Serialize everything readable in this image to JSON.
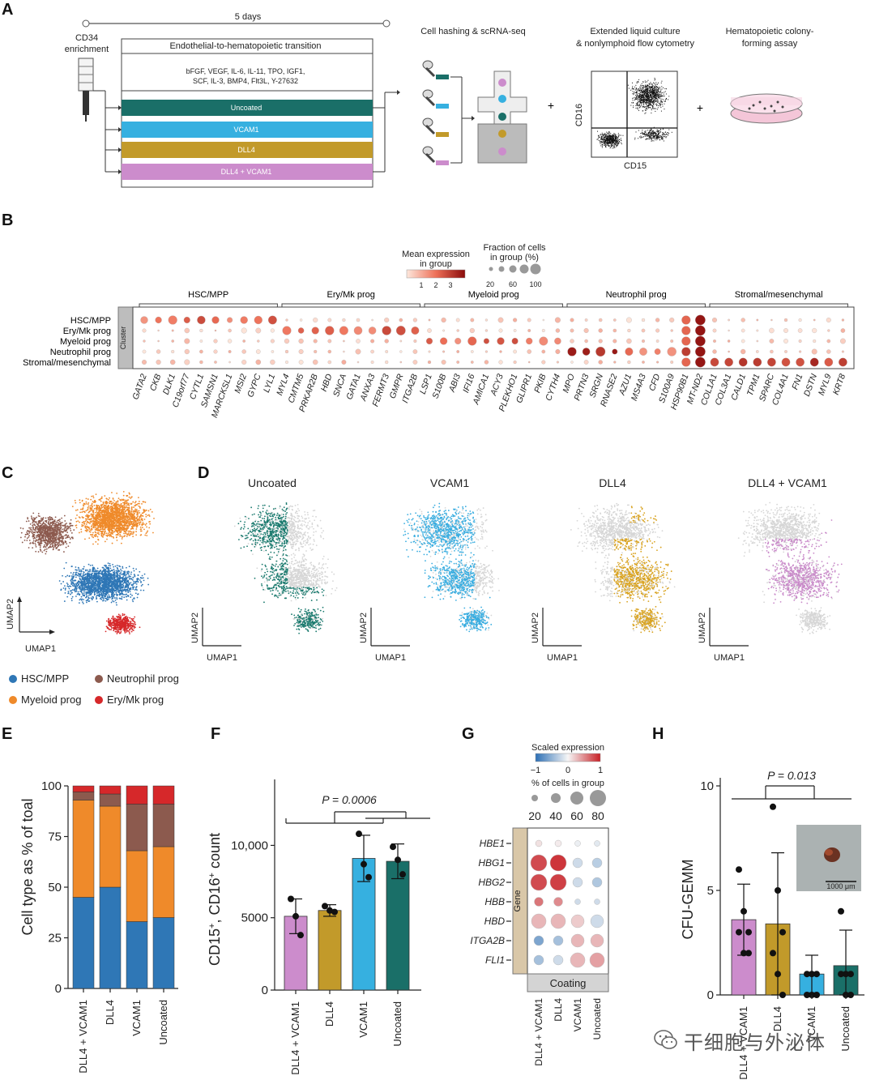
{
  "panels": {
    "a": "A",
    "b": "B",
    "c": "C",
    "d": "D",
    "e": "E",
    "f": "F",
    "g": "G",
    "h": "H"
  },
  "panel_a": {
    "days": "5 days",
    "cd34_line1": "CD34",
    "cd34_line2": "enrichment",
    "eht_title": "Endothelial-to-hematopoietic transition",
    "factors_line1": "bFGF, VEGF, IL-6, IL-11, TPO, IGF1,",
    "factors_line2": "SCF, IL-3, BMP4, Flt3L, Y-27632",
    "conditions": [
      {
        "label": "Uncoated",
        "color": "#1a6f68"
      },
      {
        "label": "VCAM1",
        "color": "#36b0e0"
      },
      {
        "label": "DLL4",
        "color": "#c29a2a"
      },
      {
        "label": "DLL4 + VCAM1",
        "color": "#cc8ccc"
      }
    ],
    "hashing_title": "Cell hashing & scRNA-seq",
    "flow_title_line1": "Extended liquid culture",
    "flow_title_line2": "& nonlymphoid flow cytometry",
    "flow_y": "CD16",
    "flow_x": "CD15",
    "colony_title_line1": "Hematopoietic colony-",
    "colony_title_line2": "forming assay",
    "plus": "+"
  },
  "panel_b": {
    "mean_expr_title_line1": "Mean expression",
    "mean_expr_title_line2": "in group",
    "mean_expr_ticks": [
      "1",
      "2",
      "3"
    ],
    "fraction_title_line1": "Fraction of cells",
    "fraction_title_line2": "in group (%)",
    "fraction_ticks": [
      "20",
      "60",
      "100"
    ],
    "cluster_label": "Cluster",
    "groups": [
      "HSC/MPP",
      "Ery/Mk prog",
      "Myeloid prog",
      "Neutrophil prog",
      "Stromal/mesenchymal"
    ],
    "rows": [
      "HSC/MPP",
      "Ery/Mk prog",
      "Myeloid prog",
      "Neutrophil prog",
      "Stromal/mesenchymal"
    ],
    "genes": [
      "GATA2",
      "CKB",
      "DLK1",
      "C19orf77",
      "CYTL1",
      "SAMSN1",
      "MARCKSL1",
      "MSI2",
      "GYPC",
      "LYL1",
      "MYL4",
      "CMTM5",
      "PRKAR2B",
      "HBD",
      "SNCA",
      "GATA1",
      "ANXA3",
      "FERMT3",
      "GMPR",
      "ITGA2B",
      "LSP1",
      "S100B",
      "ABI3",
      "IFI16",
      "AMICA1",
      "ACY3",
      "PLEKHO1",
      "GLIPR1",
      "PKIB",
      "CYTH4",
      "MPO",
      "PRTN3",
      "SRGN",
      "RNASE2",
      "AZU1",
      "MS4A3",
      "CFD",
      "S100A9",
      "HSP90B1",
      "MT-ND2",
      "COL1A1",
      "COL3A1",
      "CALD1",
      "TPM1",
      "SPARC",
      "COL4A1",
      "FN1",
      "DSTN",
      "MYL9",
      "KRT8"
    ]
  },
  "panel_c": {
    "umap_y": "UMAP2",
    "umap_x": "UMAP1",
    "legend": [
      {
        "label": "HSC/MPP",
        "color": "#2f77b6"
      },
      {
        "label": "Neutrophil prog",
        "color": "#8c5a4e"
      },
      {
        "label": "Myeloid prog",
        "color": "#ef8a2a"
      },
      {
        "label": "Ery/Mk prog",
        "color": "#d6282a"
      }
    ]
  },
  "panel_d": {
    "titles": [
      "Uncoated",
      "VCAM1",
      "DLL4",
      "DLL4 + VCAM1"
    ],
    "colors": [
      "#1a7a6e",
      "#39ade0",
      "#d9a320",
      "#c98ac9"
    ],
    "umap_y": "UMAP2",
    "umap_x": "UMAP1"
  },
  "panel_e": {
    "ylabel": "Cell type as % of toal",
    "yticks": [
      "0",
      "25",
      "50",
      "75",
      "100"
    ]
  },
  "panel_f": {
    "ylabel_main": "CD15",
    "ylabel_sup1": "+",
    "ylabel_mid": ", CD16",
    "ylabel_sup2": "+",
    "ylabel_end": " count",
    "pvalue": "P = 0.0006",
    "yticks": [
      "0",
      "5000",
      "10,000"
    ]
  },
  "panel_g": {
    "scaled_title": "Scaled expression",
    "scaled_ticks": [
      "−1",
      "0",
      "1"
    ],
    "pct_title": "% of cells in group",
    "pct_ticks": [
      "20",
      "40",
      "60",
      "80"
    ],
    "gene_label": "Gene",
    "coating_label": "Coating",
    "genes": [
      "HBE1",
      "HBG1",
      "HBG2",
      "HBB",
      "HBD",
      "ITGA2B",
      "FLI1"
    ]
  },
  "panel_h": {
    "ylabel": "CFU-GEMM",
    "pvalue": "P = 0.013",
    "yticks": [
      "0",
      "5",
      "10"
    ],
    "scale_bar": "1000 μm"
  },
  "watermark": "干细胞与外泌体",
  "chart_data": [
    {
      "type": "bar",
      "title": "Panel E",
      "ylabel": "Cell type as % of toal",
      "ylim": [
        0,
        100
      ],
      "categories": [
        "DLL4 + VCAM1",
        "DLL4",
        "VCAM1",
        "Uncoated"
      ],
      "series": [
        {
          "name": "HSC/MPP",
          "color": "#2f77b6",
          "values": [
            45,
            50,
            33,
            35
          ]
        },
        {
          "name": "Myeloid prog",
          "color": "#ef8a2a",
          "values": [
            48,
            40,
            35,
            35
          ]
        },
        {
          "name": "Neutrophil prog",
          "color": "#8c5a4e",
          "values": [
            4,
            6,
            23,
            21
          ]
        },
        {
          "name": "Ery/Mk prog",
          "color": "#d6282a",
          "values": [
            3,
            4,
            9,
            9
          ]
        }
      ]
    },
    {
      "type": "bar",
      "title": "Panel F",
      "ylabel": "CD15+, CD16+ count",
      "ylim": [
        0,
        14000
      ],
      "categories": [
        "DLL4 + VCAM1",
        "DLL4",
        "VCAM1",
        "Uncoated"
      ],
      "colors": [
        "#cc8ccc",
        "#c29a2a",
        "#36b0e0",
        "#1a6f68"
      ],
      "values": [
        5100,
        5500,
        9100,
        8900
      ],
      "errors": [
        1200,
        400,
        1600,
        1200
      ],
      "points": [
        [
          6300,
          5100,
          3800
        ],
        [
          5800,
          5500,
          5400
        ],
        [
          10800,
          8700,
          7800
        ],
        [
          9900,
          9000,
          8000
        ]
      ],
      "annotation": "P = 0.0006"
    },
    {
      "type": "scatter",
      "title": "Panel G",
      "categories": [
        "DLL4 + VCAM1",
        "DLL4",
        "VCAM1",
        "Uncoated"
      ],
      "genes": [
        "HBE1",
        "HBG1",
        "HBG2",
        "HBB",
        "HBD",
        "ITGA2B",
        "FLI1"
      ],
      "scaled": [
        [
          0.1,
          0.05,
          -0.05,
          -0.1
        ],
        [
          0.8,
          0.9,
          -0.2,
          -0.3
        ],
        [
          0.8,
          0.85,
          -0.2,
          -0.35
        ],
        [
          0.6,
          0.5,
          -0.2,
          -0.2
        ],
        [
          0.3,
          0.3,
          0.2,
          -0.2
        ],
        [
          -0.6,
          -0.4,
          0.3,
          0.3
        ],
        [
          -0.4,
          -0.2,
          0.3,
          0.4
        ]
      ],
      "pct": [
        [
          20,
          20,
          15,
          15
        ],
        [
          80,
          80,
          40,
          40
        ],
        [
          80,
          80,
          40,
          40
        ],
        [
          35,
          35,
          15,
          15
        ],
        [
          70,
          70,
          60,
          60
        ],
        [
          40,
          40,
          60,
          60
        ],
        [
          40,
          40,
          70,
          70
        ]
      ]
    },
    {
      "type": "bar",
      "title": "Panel H",
      "ylabel": "CFU-GEMM",
      "ylim": [
        0,
        10
      ],
      "categories": [
        "DLL4 + VCAM1",
        "DLL4",
        "VCAM1",
        "Uncoated"
      ],
      "colors": [
        "#cc8ccc",
        "#c29a2a",
        "#36b0e0",
        "#1a6f68"
      ],
      "values": [
        3.6,
        3.4,
        1.0,
        1.4
      ],
      "errors": [
        1.7,
        3.4,
        0.9,
        1.7
      ],
      "points": [
        [
          6.0,
          4.0,
          3.0,
          3.0,
          2.0,
          2.0
        ],
        [
          9.0,
          5.0,
          3.0,
          2.0,
          1.0,
          0.0
        ],
        [
          1.0,
          1.0,
          1.0,
          0.0,
          0.0,
          0.0
        ],
        [
          4.0,
          1.0,
          1.0,
          1.0,
          0.0,
          0.0
        ]
      ],
      "annotation": "P = 0.013"
    }
  ]
}
